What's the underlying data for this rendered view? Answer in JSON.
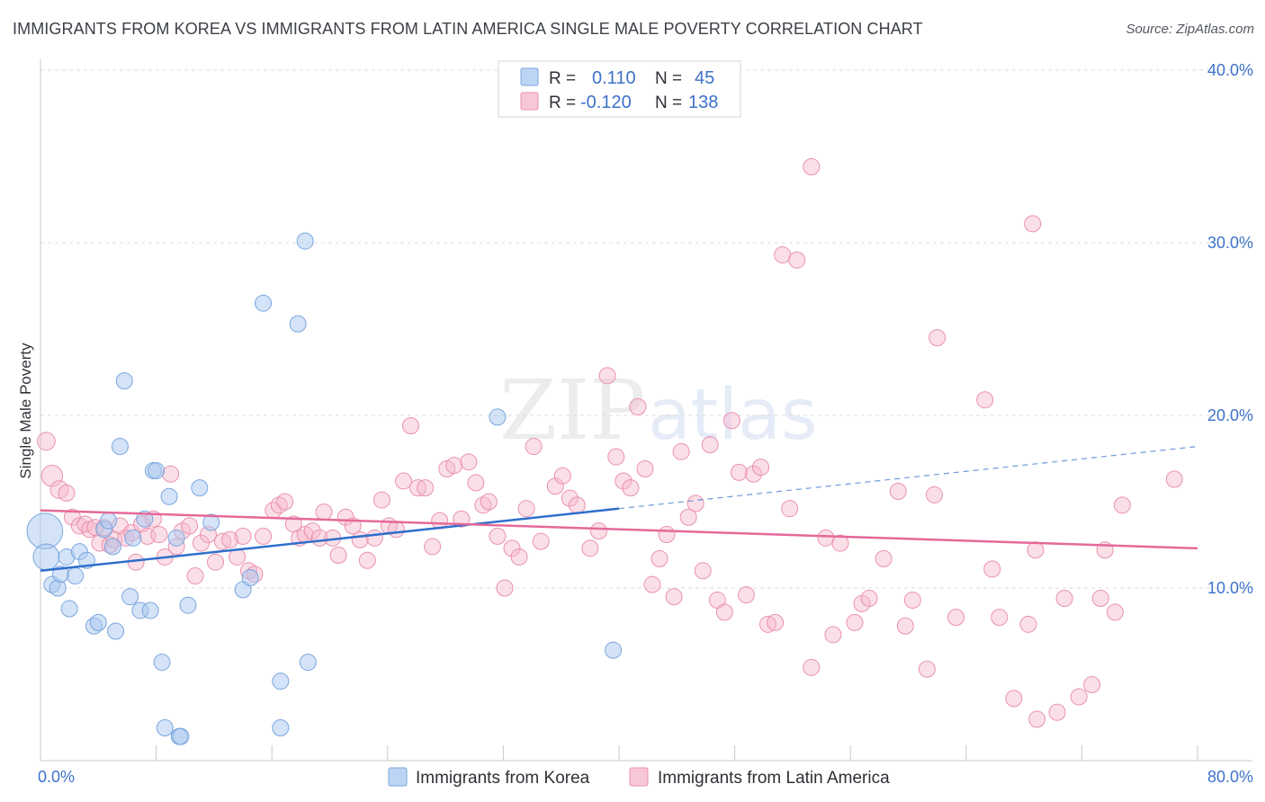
{
  "title": "IMMIGRANTS FROM KOREA VS IMMIGRANTS FROM LATIN AMERICA SINGLE MALE POVERTY CORRELATION CHART",
  "source": "Source: ZipAtlas.com",
  "watermark": "ZIPatlas",
  "colors": {
    "blue_fill": "#a9c8f0",
    "blue_stroke": "#7aa6de",
    "blue_line": "#2f6fcb",
    "pink_fill": "#f6b9cb",
    "pink_stroke": "#e992ad",
    "pink_line": "#e5699a",
    "grid": "#dcdcdc",
    "tick_text": "#3d72c8"
  },
  "legend": {
    "r_label": "R =",
    "n_label": "N =",
    "blue_r": "0.110",
    "blue_n": "45",
    "pink_r": "-0.120",
    "pink_n": "138"
  },
  "chart_data": {
    "type": "scatter",
    "title": "IMMIGRANTS FROM KOREA VS IMMIGRANTS FROM LATIN AMERICA SINGLE MALE POVERTY CORRELATION CHART",
    "xlabel": "",
    "ylabel": "Single Male Poverty",
    "xlim": [
      0,
      80
    ],
    "ylim": [
      0,
      40
    ],
    "x_tick_labels": [
      "0.0%",
      "80.0%"
    ],
    "y_ticks": [
      10,
      20,
      30,
      40
    ],
    "y_tick_labels": [
      "10.0%",
      "20.0%",
      "30.0%",
      "40.0%"
    ],
    "grid": true,
    "legend_position": "top-center",
    "series": [
      {
        "name": "Immigrants from Korea",
        "color": "blue",
        "R": 0.11,
        "N": 45,
        "trend": {
          "x0": 0,
          "y0": 11.0,
          "x1": 40,
          "y1": 14.6,
          "dashed_to_x": 80,
          "dashed_to_y": 18.2
        },
        "points": [
          {
            "x": 0.3,
            "y": 13.3,
            "s": 2.2
          },
          {
            "x": 0.4,
            "y": 11.8,
            "s": 1.6
          },
          {
            "x": 0.8,
            "y": 10.2,
            "s": 1
          },
          {
            "x": 1.2,
            "y": 10.0,
            "s": 1
          },
          {
            "x": 1.4,
            "y": 10.8,
            "s": 1
          },
          {
            "x": 1.8,
            "y": 11.8,
            "s": 1
          },
          {
            "x": 2.0,
            "y": 8.8,
            "s": 1
          },
          {
            "x": 2.4,
            "y": 10.7,
            "s": 1
          },
          {
            "x": 2.7,
            "y": 12.1,
            "s": 1
          },
          {
            "x": 3.2,
            "y": 11.6,
            "s": 1
          },
          {
            "x": 3.7,
            "y": 7.8,
            "s": 1
          },
          {
            "x": 4.0,
            "y": 8.0,
            "s": 1
          },
          {
            "x": 4.4,
            "y": 13.4,
            "s": 1
          },
          {
            "x": 4.7,
            "y": 13.9,
            "s": 1
          },
          {
            "x": 5.0,
            "y": 12.4,
            "s": 1
          },
          {
            "x": 5.2,
            "y": 7.5,
            "s": 1
          },
          {
            "x": 5.5,
            "y": 18.2,
            "s": 1
          },
          {
            "x": 5.8,
            "y": 22.0,
            "s": 1
          },
          {
            "x": 6.2,
            "y": 9.5,
            "s": 1
          },
          {
            "x": 6.4,
            "y": 12.9,
            "s": 1
          },
          {
            "x": 6.9,
            "y": 8.7,
            "s": 1
          },
          {
            "x": 7.2,
            "y": 14.0,
            "s": 1
          },
          {
            "x": 7.6,
            "y": 8.7,
            "s": 1
          },
          {
            "x": 7.8,
            "y": 16.8,
            "s": 1
          },
          {
            "x": 8.0,
            "y": 16.8,
            "s": 1
          },
          {
            "x": 8.4,
            "y": 5.7,
            "s": 1
          },
          {
            "x": 8.6,
            "y": 1.9,
            "s": 1
          },
          {
            "x": 8.9,
            "y": 15.3,
            "s": 1
          },
          {
            "x": 9.4,
            "y": 12.9,
            "s": 1
          },
          {
            "x": 9.6,
            "y": 1.4,
            "s": 1
          },
          {
            "x": 9.7,
            "y": 1.4,
            "s": 1
          },
          {
            "x": 10.2,
            "y": 9.0,
            "s": 1
          },
          {
            "x": 11.0,
            "y": 15.8,
            "s": 1
          },
          {
            "x": 11.8,
            "y": 13.8,
            "s": 1
          },
          {
            "x": 14.0,
            "y": 9.9,
            "s": 1
          },
          {
            "x": 14.5,
            "y": 10.6,
            "s": 1
          },
          {
            "x": 15.4,
            "y": 26.5,
            "s": 1
          },
          {
            "x": 16.6,
            "y": 4.6,
            "s": 1
          },
          {
            "x": 16.6,
            "y": 1.9,
            "s": 1
          },
          {
            "x": 17.8,
            "y": 25.3,
            "s": 1
          },
          {
            "x": 18.3,
            "y": 30.1,
            "s": 1
          },
          {
            "x": 18.5,
            "y": 5.7,
            "s": 1
          },
          {
            "x": 31.6,
            "y": 19.9,
            "s": 1
          },
          {
            "x": 39.6,
            "y": 6.4,
            "s": 1
          }
        ]
      },
      {
        "name": "Immigrants from Latin America",
        "color": "pink",
        "R": -0.12,
        "N": 138,
        "trend": {
          "x0": 0,
          "y0": 14.5,
          "x1": 80,
          "y1": 12.3
        },
        "points": [
          {
            "x": 0.4,
            "y": 18.5,
            "s": 1.1
          },
          {
            "x": 0.8,
            "y": 16.5,
            "s": 1.3
          },
          {
            "x": 1.3,
            "y": 15.7,
            "s": 1.1
          },
          {
            "x": 1.8,
            "y": 15.5,
            "s": 1
          },
          {
            "x": 2.2,
            "y": 14.1,
            "s": 1
          },
          {
            "x": 2.7,
            "y": 13.6,
            "s": 1
          },
          {
            "x": 3.1,
            "y": 13.7,
            "s": 1
          },
          {
            "x": 3.4,
            "y": 13.4,
            "s": 1
          },
          {
            "x": 3.8,
            "y": 13.5,
            "s": 1
          },
          {
            "x": 4.1,
            "y": 12.6,
            "s": 1
          },
          {
            "x": 4.4,
            "y": 13.5,
            "s": 1
          },
          {
            "x": 4.8,
            "y": 12.5,
            "s": 1
          },
          {
            "x": 5.1,
            "y": 12.8,
            "s": 1
          },
          {
            "x": 5.5,
            "y": 13.6,
            "s": 1
          },
          {
            "x": 5.9,
            "y": 12.9,
            "s": 1
          },
          {
            "x": 6.3,
            "y": 13.2,
            "s": 1
          },
          {
            "x": 6.6,
            "y": 11.5,
            "s": 1
          },
          {
            "x": 7.0,
            "y": 13.7,
            "s": 1
          },
          {
            "x": 7.4,
            "y": 13.0,
            "s": 1
          },
          {
            "x": 7.8,
            "y": 14.0,
            "s": 1
          },
          {
            "x": 8.2,
            "y": 13.1,
            "s": 1
          },
          {
            "x": 8.6,
            "y": 11.8,
            "s": 1
          },
          {
            "x": 9.0,
            "y": 16.6,
            "s": 1
          },
          {
            "x": 9.4,
            "y": 12.4,
            "s": 1
          },
          {
            "x": 9.8,
            "y": 13.3,
            "s": 1
          },
          {
            "x": 10.3,
            "y": 13.6,
            "s": 1
          },
          {
            "x": 10.7,
            "y": 10.7,
            "s": 1
          },
          {
            "x": 11.1,
            "y": 12.6,
            "s": 1
          },
          {
            "x": 11.6,
            "y": 13.1,
            "s": 1
          },
          {
            "x": 12.1,
            "y": 11.5,
            "s": 1
          },
          {
            "x": 12.6,
            "y": 12.7,
            "s": 1
          },
          {
            "x": 13.1,
            "y": 12.8,
            "s": 1
          },
          {
            "x": 13.6,
            "y": 11.8,
            "s": 1
          },
          {
            "x": 14.0,
            "y": 13.0,
            "s": 1
          },
          {
            "x": 14.4,
            "y": 11.0,
            "s": 1
          },
          {
            "x": 14.8,
            "y": 10.8,
            "s": 1
          },
          {
            "x": 15.4,
            "y": 13.0,
            "s": 1
          },
          {
            "x": 16.1,
            "y": 14.5,
            "s": 1
          },
          {
            "x": 16.5,
            "y": 14.8,
            "s": 1
          },
          {
            "x": 16.9,
            "y": 15.0,
            "s": 1
          },
          {
            "x": 17.5,
            "y": 13.7,
            "s": 1
          },
          {
            "x": 17.9,
            "y": 12.9,
            "s": 1
          },
          {
            "x": 18.3,
            "y": 13.1,
            "s": 1
          },
          {
            "x": 18.8,
            "y": 13.3,
            "s": 1
          },
          {
            "x": 19.3,
            "y": 12.9,
            "s": 1
          },
          {
            "x": 19.6,
            "y": 14.4,
            "s": 1
          },
          {
            "x": 20.2,
            "y": 12.9,
            "s": 1
          },
          {
            "x": 20.6,
            "y": 11.9,
            "s": 1
          },
          {
            "x": 21.1,
            "y": 14.1,
            "s": 1
          },
          {
            "x": 21.6,
            "y": 13.6,
            "s": 1
          },
          {
            "x": 22.1,
            "y": 12.8,
            "s": 1
          },
          {
            "x": 22.6,
            "y": 11.6,
            "s": 1
          },
          {
            "x": 23.1,
            "y": 12.9,
            "s": 1
          },
          {
            "x": 23.6,
            "y": 15.1,
            "s": 1
          },
          {
            "x": 24.1,
            "y": 13.6,
            "s": 1
          },
          {
            "x": 24.6,
            "y": 13.4,
            "s": 1
          },
          {
            "x": 25.1,
            "y": 16.2,
            "s": 1
          },
          {
            "x": 25.6,
            "y": 19.4,
            "s": 1
          },
          {
            "x": 26.1,
            "y": 15.8,
            "s": 1
          },
          {
            "x": 26.6,
            "y": 15.8,
            "s": 1
          },
          {
            "x": 27.1,
            "y": 12.4,
            "s": 1
          },
          {
            "x": 27.6,
            "y": 13.9,
            "s": 1
          },
          {
            "x": 28.1,
            "y": 16.9,
            "s": 1
          },
          {
            "x": 28.6,
            "y": 17.1,
            "s": 1
          },
          {
            "x": 29.1,
            "y": 14.0,
            "s": 1
          },
          {
            "x": 29.6,
            "y": 17.3,
            "s": 1
          },
          {
            "x": 30.1,
            "y": 16.1,
            "s": 1
          },
          {
            "x": 30.6,
            "y": 14.8,
            "s": 1
          },
          {
            "x": 31.0,
            "y": 15.0,
            "s": 1
          },
          {
            "x": 31.6,
            "y": 13.0,
            "s": 1
          },
          {
            "x": 32.1,
            "y": 10.0,
            "s": 1
          },
          {
            "x": 32.6,
            "y": 12.3,
            "s": 1
          },
          {
            "x": 33.1,
            "y": 11.8,
            "s": 1
          },
          {
            "x": 33.6,
            "y": 14.6,
            "s": 1
          },
          {
            "x": 34.1,
            "y": 18.2,
            "s": 1
          },
          {
            "x": 34.6,
            "y": 12.7,
            "s": 1
          },
          {
            "x": 35.6,
            "y": 15.9,
            "s": 1
          },
          {
            "x": 36.1,
            "y": 16.5,
            "s": 1
          },
          {
            "x": 36.6,
            "y": 15.2,
            "s": 1
          },
          {
            "x": 37.1,
            "y": 14.8,
            "s": 1
          },
          {
            "x": 38.0,
            "y": 12.3,
            "s": 1
          },
          {
            "x": 38.6,
            "y": 13.3,
            "s": 1
          },
          {
            "x": 39.2,
            "y": 22.3,
            "s": 1
          },
          {
            "x": 39.8,
            "y": 17.6,
            "s": 1
          },
          {
            "x": 40.3,
            "y": 16.2,
            "s": 1
          },
          {
            "x": 40.8,
            "y": 15.8,
            "s": 1
          },
          {
            "x": 41.3,
            "y": 20.5,
            "s": 1
          },
          {
            "x": 41.8,
            "y": 16.9,
            "s": 1
          },
          {
            "x": 42.3,
            "y": 10.2,
            "s": 1
          },
          {
            "x": 42.8,
            "y": 11.7,
            "s": 1
          },
          {
            "x": 43.3,
            "y": 13.1,
            "s": 1
          },
          {
            "x": 43.8,
            "y": 9.5,
            "s": 1
          },
          {
            "x": 44.3,
            "y": 17.9,
            "s": 1
          },
          {
            "x": 44.8,
            "y": 14.1,
            "s": 1
          },
          {
            "x": 45.3,
            "y": 14.9,
            "s": 1
          },
          {
            "x": 45.8,
            "y": 11.0,
            "s": 1
          },
          {
            "x": 46.3,
            "y": 18.3,
            "s": 1
          },
          {
            "x": 46.8,
            "y": 9.3,
            "s": 1
          },
          {
            "x": 47.3,
            "y": 8.6,
            "s": 1
          },
          {
            "x": 47.8,
            "y": 19.7,
            "s": 1
          },
          {
            "x": 48.3,
            "y": 16.7,
            "s": 1
          },
          {
            "x": 48.8,
            "y": 9.6,
            "s": 1
          },
          {
            "x": 49.3,
            "y": 16.6,
            "s": 1
          },
          {
            "x": 49.8,
            "y": 17.0,
            "s": 1
          },
          {
            "x": 50.3,
            "y": 7.9,
            "s": 1
          },
          {
            "x": 50.8,
            "y": 8.0,
            "s": 1
          },
          {
            "x": 51.3,
            "y": 29.3,
            "s": 1
          },
          {
            "x": 51.8,
            "y": 14.6,
            "s": 1
          },
          {
            "x": 52.3,
            "y": 29.0,
            "s": 1
          },
          {
            "x": 53.3,
            "y": 34.4,
            "s": 1
          },
          {
            "x": 53.3,
            "y": 5.4,
            "s": 1
          },
          {
            "x": 54.3,
            "y": 12.9,
            "s": 1
          },
          {
            "x": 54.8,
            "y": 7.3,
            "s": 1
          },
          {
            "x": 55.3,
            "y": 12.6,
            "s": 1
          },
          {
            "x": 56.3,
            "y": 8.0,
            "s": 1
          },
          {
            "x": 56.8,
            "y": 9.1,
            "s": 1
          },
          {
            "x": 57.3,
            "y": 9.4,
            "s": 1
          },
          {
            "x": 58.3,
            "y": 11.7,
            "s": 1
          },
          {
            "x": 59.3,
            "y": 15.6,
            "s": 1
          },
          {
            "x": 59.8,
            "y": 7.8,
            "s": 1
          },
          {
            "x": 60.3,
            "y": 9.3,
            "s": 1
          },
          {
            "x": 61.3,
            "y": 5.3,
            "s": 1
          },
          {
            "x": 61.8,
            "y": 15.4,
            "s": 1
          },
          {
            "x": 62.0,
            "y": 24.5,
            "s": 1
          },
          {
            "x": 63.3,
            "y": 8.3,
            "s": 1
          },
          {
            "x": 65.3,
            "y": 20.9,
            "s": 1
          },
          {
            "x": 65.8,
            "y": 11.1,
            "s": 1
          },
          {
            "x": 66.3,
            "y": 8.3,
            "s": 1
          },
          {
            "x": 67.3,
            "y": 3.6,
            "s": 1
          },
          {
            "x": 68.3,
            "y": 7.9,
            "s": 1
          },
          {
            "x": 68.8,
            "y": 12.2,
            "s": 1
          },
          {
            "x": 68.6,
            "y": 31.1,
            "s": 1
          },
          {
            "x": 68.9,
            "y": 2.4,
            "s": 1
          },
          {
            "x": 70.3,
            "y": 2.8,
            "s": 1
          },
          {
            "x": 70.8,
            "y": 9.4,
            "s": 1
          },
          {
            "x": 71.8,
            "y": 3.7,
            "s": 1
          },
          {
            "x": 72.7,
            "y": 4.4,
            "s": 1
          },
          {
            "x": 73.3,
            "y": 9.4,
            "s": 1
          },
          {
            "x": 73.6,
            "y": 12.2,
            "s": 1
          },
          {
            "x": 74.3,
            "y": 8.6,
            "s": 1
          },
          {
            "x": 74.8,
            "y": 14.8,
            "s": 1
          },
          {
            "x": 78.4,
            "y": 16.3,
            "s": 1
          }
        ]
      }
    ]
  },
  "bottom_legend": {
    "blue_label": "Immigrants from Korea",
    "pink_label": "Immigrants from Latin America"
  }
}
